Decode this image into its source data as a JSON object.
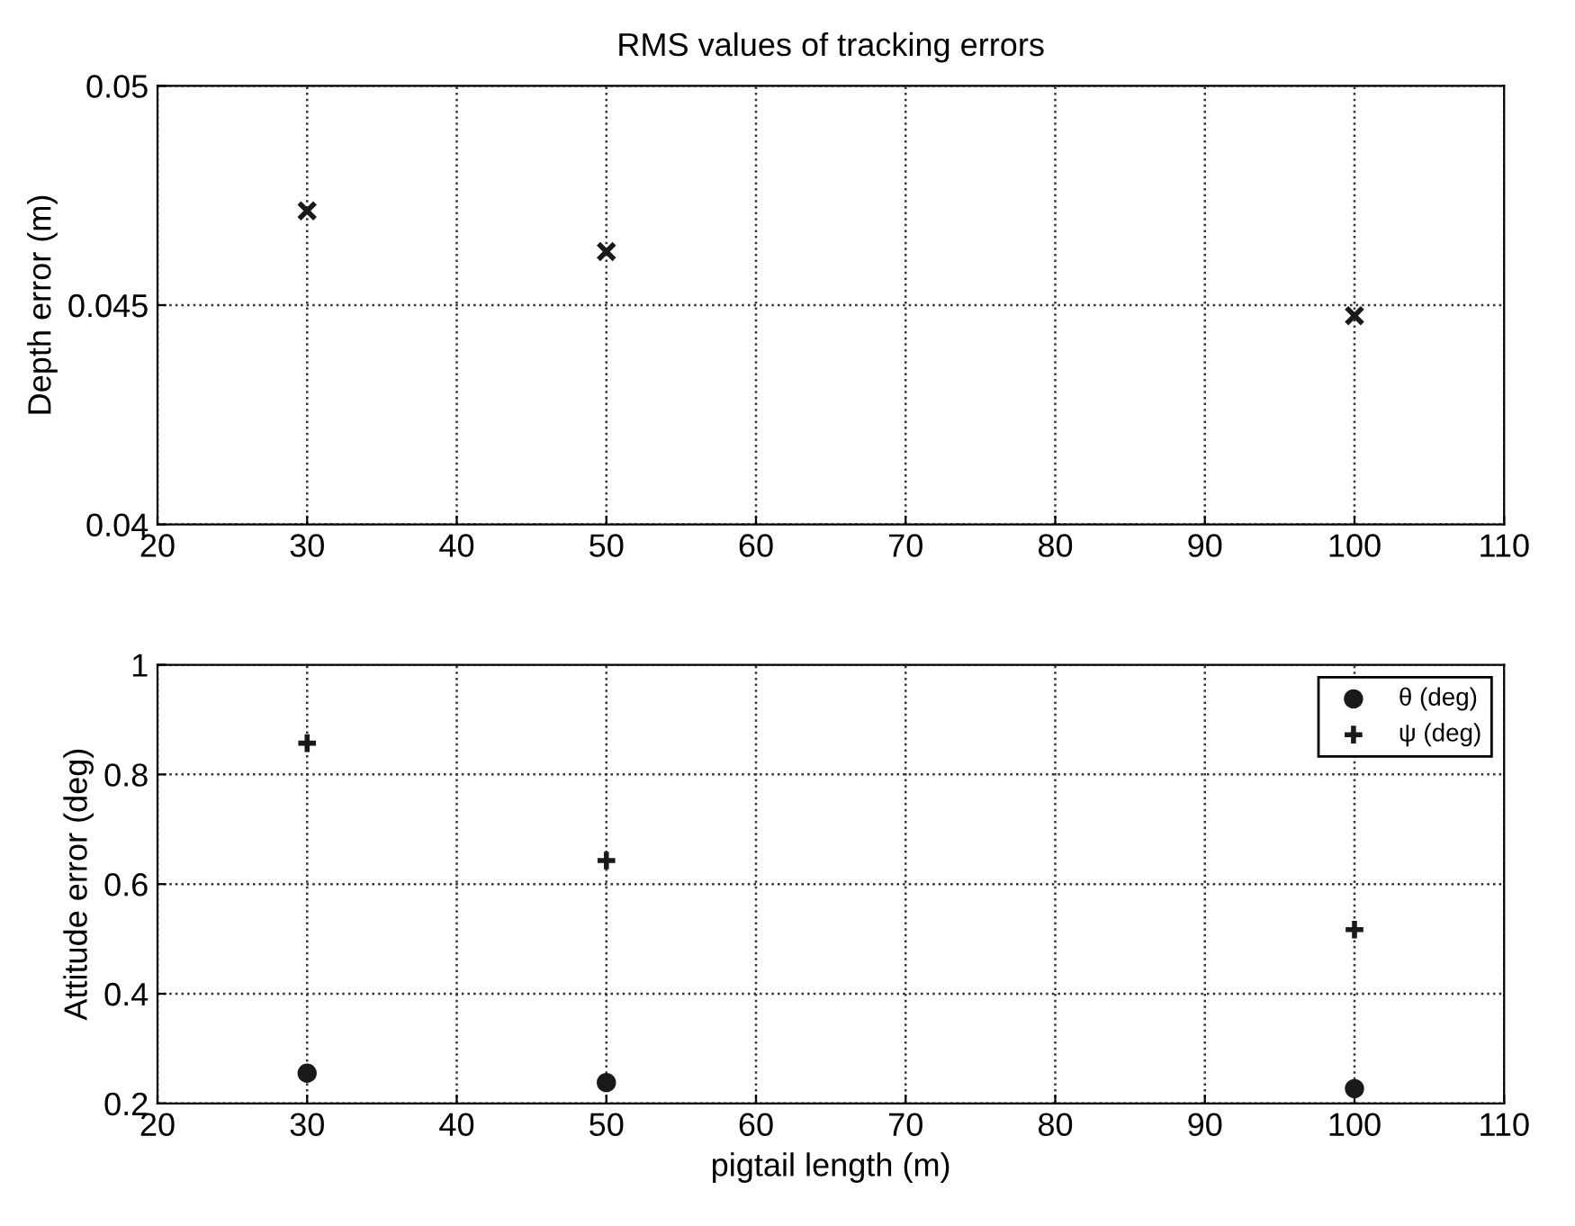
{
  "chart_data": [
    {
      "type": "scatter",
      "title": "RMS values of tracking errors",
      "ylabel": "Depth error (m)",
      "x": [
        30,
        50,
        100
      ],
      "series": [
        {
          "color": "#1a1a1a",
          "marker": "cross",
          "values": [
            0.04715,
            0.04622,
            0.04476
          ]
        }
      ],
      "xlim": [
        20,
        110
      ],
      "xticks": [
        20,
        30,
        40,
        50,
        60,
        70,
        80,
        90,
        100,
        110
      ],
      "ylim": [
        0.04,
        0.05
      ],
      "yticks": [
        0.04,
        0.045,
        0.05
      ],
      "grid": true,
      "legend": false
    },
    {
      "type": "scatter",
      "xlabel": "pigtail length (m)",
      "ylabel": "Attitude error (deg)",
      "x": [
        30,
        50,
        100
      ],
      "series": [
        {
          "name": "θ (deg)",
          "color": "#1a1a1a",
          "marker": "circle",
          "values": [
            0.255,
            0.238,
            0.227
          ]
        },
        {
          "name": "ψ (deg)",
          "color": "#1a1a1a",
          "marker": "plus",
          "values": [
            0.857,
            0.643,
            0.517
          ]
        }
      ],
      "xlim": [
        20,
        110
      ],
      "xticks": [
        20,
        30,
        40,
        50,
        60,
        70,
        80,
        90,
        100,
        110
      ],
      "ylim": [
        0.2,
        1
      ],
      "yticks": [
        0.2,
        0.4,
        0.6,
        0.8,
        1
      ],
      "grid": true,
      "legend": "top right"
    }
  ]
}
